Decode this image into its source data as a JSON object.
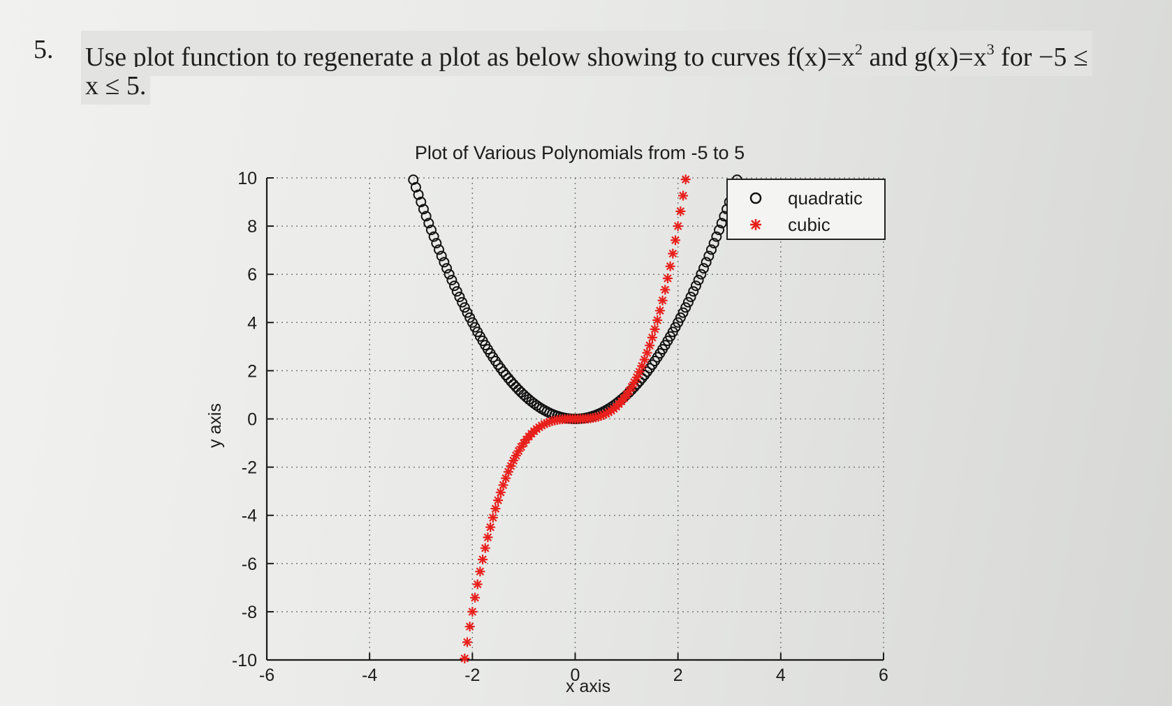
{
  "question": {
    "number": "5.",
    "line1_a": "Use plot function to regenerate a plot as below showing to curves f(x)=x",
    "line1_sup1": "2",
    "line1_b": " and g(x)=x",
    "line1_sup2": "3",
    "line1_c": " for  −5 ≤",
    "line2": "x ≤ 5."
  },
  "chart_data": {
    "type": "scatter",
    "title": "Plot of Various Polynomials from -5 to 5",
    "xlabel": "x axis",
    "ylabel": "y axis",
    "xlim": [
      -6,
      6
    ],
    "ylim": [
      -10,
      10
    ],
    "x_ticks": [
      -6,
      -4,
      -2,
      0,
      2,
      4,
      6
    ],
    "y_ticks": [
      -10,
      -8,
      -6,
      -4,
      -2,
      0,
      2,
      4,
      6,
      8,
      10
    ],
    "x_tick_labels": [
      "-6",
      "-4",
      "-2",
      "0",
      "2",
      "4",
      "6"
    ],
    "y_tick_labels": [
      "-10",
      "-8",
      "-6",
      "-4",
      "-2",
      "0",
      "2",
      "4",
      "6",
      "8",
      "10"
    ],
    "grid": true,
    "legend_position": "top-right",
    "x_range": [
      -5,
      5
    ],
    "x_step": 0.05,
    "series": [
      {
        "name": "quadratic",
        "function": "x^2",
        "marker": "o",
        "color": "#111111"
      },
      {
        "name": "cubic",
        "function": "x^3",
        "marker": "*",
        "color": "#e8201c"
      }
    ]
  }
}
